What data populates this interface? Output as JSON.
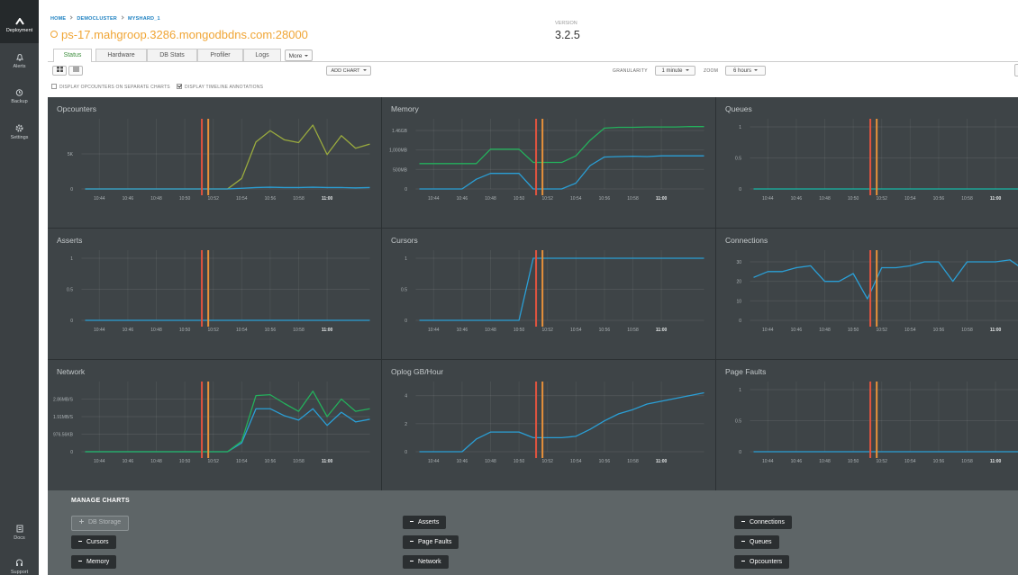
{
  "sidebar": {
    "items": [
      "Deployment",
      "Alerts",
      "Backup",
      "Settings"
    ],
    "bottom": [
      "Docs",
      "Support"
    ]
  },
  "breadcrumb": [
    "HOME",
    "DEMOCLUSTER",
    "MYSHARD_1"
  ],
  "host": "ps-17.mahgroop.3286.mongodbdns.com:28000",
  "version": {
    "label": "VERSION",
    "value": "3.2.5"
  },
  "tabs": [
    "Status",
    "Hardware",
    "DB Stats",
    "Profiler",
    "Logs",
    "More"
  ],
  "toolbar": {
    "add_chart": "ADD CHART",
    "granularity_label": "GRANULARITY",
    "granularity": "1 minute",
    "zoom_label": "ZOOM",
    "zoom": "6 hours"
  },
  "options": [
    "DISPLAY OPCOUNTERS ON SEPARATE CHARTS",
    "DISPLAY TIMELINE ANNOTATIONS"
  ],
  "manage_charts": {
    "title": "MANAGE CHARTS",
    "available": [
      "DB Storage"
    ],
    "columns": [
      [
        "Cursors",
        "Memory"
      ],
      [
        "Asserts",
        "Page Faults",
        "Network"
      ],
      [
        "Connections",
        "Queues",
        "Opcounters"
      ]
    ]
  },
  "chart_data": [
    {
      "type": "line",
      "title": "Opcounters",
      "categories": [
        null,
        "10:44",
        null,
        "10:46",
        null,
        "10:48",
        null,
        "10:50",
        null,
        "10:52",
        null,
        "10:54",
        null,
        "10:56",
        null,
        "10:58",
        null,
        "11:00",
        null,
        null,
        null
      ],
      "ylim": [
        0,
        10000
      ],
      "yticks": [
        0,
        {
          "value": 5000,
          "label": "5K"
        }
      ],
      "grid": true,
      "series": [
        {
          "color": "#9aab3e",
          "values": [
            0,
            0,
            0,
            0,
            0,
            0,
            0,
            0,
            0,
            0,
            0,
            1500,
            6700,
            8300,
            7000,
            6600,
            9100,
            4900,
            7600,
            5800,
            6400
          ]
        },
        {
          "color": "#2a9fd6",
          "values": [
            0,
            0,
            0,
            0,
            0,
            0,
            0,
            0,
            0,
            0,
            0,
            100,
            200,
            250,
            200,
            200,
            250,
            200,
            200,
            150,
            200
          ]
        }
      ]
    },
    {
      "type": "line",
      "title": "Memory",
      "categories": [
        null,
        "10:44",
        null,
        "10:46",
        null,
        "10:48",
        null,
        "10:50",
        null,
        "10:52",
        null,
        "10:54",
        null,
        "10:56",
        null,
        "10:58",
        null,
        "11:00",
        null,
        null,
        null
      ],
      "ylim": [
        0,
        1800
      ],
      "yticks": [
        0,
        {
          "value": 500,
          "label": "500MB"
        },
        {
          "value": 1000,
          "label": "1,000MB"
        },
        {
          "value": 1500,
          "label": "1.46GB"
        }
      ],
      "grid": true,
      "series": [
        {
          "color": "#24b05c",
          "values": [
            650,
            650,
            650,
            650,
            650,
            1020,
            1020,
            1020,
            680,
            680,
            680,
            850,
            1250,
            1560,
            1580,
            1580,
            1590,
            1590,
            1590,
            1600,
            1600
          ]
        },
        {
          "color": "#2a9fd6",
          "values": [
            0,
            0,
            0,
            0,
            250,
            400,
            400,
            400,
            0,
            0,
            0,
            150,
            600,
            820,
            830,
            840,
            830,
            850,
            850,
            850,
            850
          ]
        }
      ]
    },
    {
      "type": "line",
      "title": "Queues",
      "categories": [
        null,
        "10:44",
        null,
        "10:46",
        null,
        "10:48",
        null,
        "10:50",
        null,
        "10:52",
        null,
        "10:54",
        null,
        "10:56",
        null,
        "10:58",
        null,
        "11:00",
        null,
        null,
        null
      ],
      "ylim": [
        0,
        1.13
      ],
      "yticks": [
        0,
        0.5,
        1
      ],
      "grid": true,
      "series": [
        {
          "color": "#17b8a6",
          "values": [
            0,
            0,
            0,
            0,
            0,
            0,
            0,
            0,
            0,
            0,
            0,
            0,
            0,
            0,
            0,
            0,
            0,
            0,
            0,
            0,
            0
          ]
        }
      ]
    },
    {
      "type": "line",
      "title": "Asserts",
      "categories": [
        null,
        "10:44",
        null,
        "10:46",
        null,
        "10:48",
        null,
        "10:50",
        null,
        "10:52",
        null,
        "10:54",
        null,
        "10:56",
        null,
        "10:58",
        null,
        "11:00",
        null,
        null,
        null
      ],
      "ylim": [
        0,
        1.13
      ],
      "yticks": [
        0,
        0.5,
        1
      ],
      "grid": true,
      "series": [
        {
          "color": "#2a9fd6",
          "values": [
            0,
            0,
            0,
            0,
            0,
            0,
            0,
            0,
            0,
            0,
            0,
            0,
            0,
            0,
            0,
            0,
            0,
            0,
            0,
            0,
            0
          ]
        }
      ]
    },
    {
      "type": "line",
      "title": "Cursors",
      "categories": [
        null,
        "10:44",
        null,
        "10:46",
        null,
        "10:48",
        null,
        "10:50",
        null,
        "10:52",
        null,
        "10:54",
        null,
        "10:56",
        null,
        "10:58",
        null,
        "11:00",
        null,
        null,
        null
      ],
      "ylim": [
        0,
        1.13
      ],
      "yticks": [
        0,
        0.5,
        1
      ],
      "grid": true,
      "series": [
        {
          "color": "#2a9fd6",
          "values": [
            0,
            0,
            0,
            0,
            0,
            0,
            0,
            0,
            1,
            1,
            1,
            1,
            1,
            1,
            1,
            1,
            1,
            1,
            1,
            1,
            1
          ]
        }
      ]
    },
    {
      "type": "line",
      "title": "Connections",
      "categories": [
        null,
        "10:44",
        null,
        "10:46",
        null,
        "10:48",
        null,
        "10:50",
        null,
        "10:52",
        null,
        "10:54",
        null,
        "10:56",
        null,
        "10:58",
        null,
        "11:00",
        null,
        null,
        null
      ],
      "ylim": [
        0,
        36
      ],
      "yticks": [
        0,
        10,
        20,
        30
      ],
      "grid": true,
      "series": [
        {
          "color": "#2a9fd6",
          "values": [
            22,
            25,
            25,
            27,
            28,
            20,
            20,
            24,
            11,
            27,
            27,
            28,
            30,
            30,
            20,
            30,
            30,
            30,
            31,
            26,
            26
          ]
        }
      ]
    },
    {
      "type": "line",
      "title": "Network",
      "categories": [
        null,
        "10:44",
        null,
        "10:46",
        null,
        "10:48",
        null,
        "10:50",
        null,
        "10:52",
        null,
        "10:54",
        null,
        "10:56",
        null,
        "10:58",
        null,
        "11:00",
        null,
        null,
        null
      ],
      "ylim": [
        0,
        4000000
      ],
      "yticks": [
        0,
        {
          "value": 1000000,
          "label": "976.56KB"
        },
        {
          "value": 2000000,
          "label": "1.91MB/S"
        },
        {
          "value": 3000000,
          "label": "2.86MB/S"
        }
      ],
      "grid": true,
      "series": [
        {
          "color": "#2a9fd6",
          "values": [
            0,
            0,
            0,
            0,
            0,
            0,
            0,
            0,
            0,
            0,
            0,
            500000,
            2450000,
            2450000,
            2050000,
            1800000,
            2450000,
            1500000,
            2250000,
            1700000,
            1850000
          ]
        },
        {
          "color": "#24b05c",
          "values": [
            0,
            0,
            0,
            0,
            0,
            0,
            0,
            0,
            0,
            0,
            0,
            600000,
            3200000,
            3250000,
            2750000,
            2300000,
            3450000,
            2000000,
            3000000,
            2300000,
            2450000
          ]
        }
      ]
    },
    {
      "type": "line",
      "title": "Oplog GB/Hour",
      "categories": [
        null,
        "10:44",
        null,
        "10:46",
        null,
        "10:48",
        null,
        "10:50",
        null,
        "10:52",
        null,
        "10:54",
        null,
        "10:56",
        null,
        "10:58",
        null,
        "11:00",
        null,
        null,
        null
      ],
      "ylim": [
        0,
        5
      ],
      "yticks": [
        0,
        2,
        4
      ],
      "grid": true,
      "series": [
        {
          "color": "#2a9fd6",
          "values": [
            0,
            0,
            0,
            0,
            0.9,
            1.4,
            1.4,
            1.4,
            1.0,
            1.0,
            1.0,
            1.1,
            1.6,
            2.2,
            2.7,
            3.0,
            3.4,
            3.6,
            3.8,
            4.0,
            4.2
          ]
        }
      ]
    },
    {
      "type": "line",
      "title": "Page Faults",
      "categories": [
        null,
        "10:44",
        null,
        "10:46",
        null,
        "10:48",
        null,
        "10:50",
        null,
        "10:52",
        null,
        "10:54",
        null,
        "10:56",
        null,
        "10:58",
        null,
        "11:00",
        null,
        null,
        null
      ],
      "ylim": [
        0,
        1.13
      ],
      "yticks": [
        0,
        0.5,
        1
      ],
      "grid": true,
      "series": [
        {
          "color": "#2a9fd6",
          "values": [
            0,
            0,
            0,
            0,
            0,
            0,
            0,
            0,
            0,
            0,
            0,
            0,
            0,
            0,
            0,
            0,
            0,
            0,
            0,
            0,
            0
          ]
        }
      ]
    }
  ]
}
